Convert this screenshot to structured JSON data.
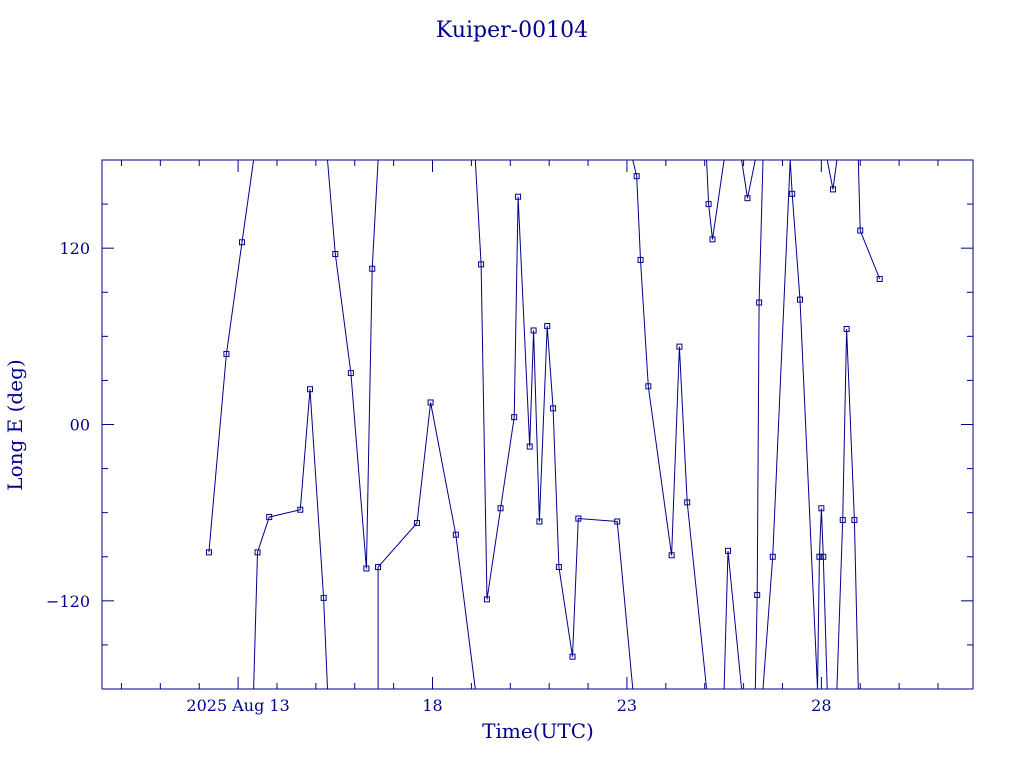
{
  "chart_data": {
    "type": "line",
    "title": "Kuiper-00104",
    "xlabel": "Time(UTC)",
    "ylabel": "Long E (deg)",
    "color": "#00008b",
    "x_axis": {
      "unit": "days (August 2025)",
      "range": [
        9.5,
        31.9
      ],
      "major_ticks": [
        {
          "value": 13.0,
          "label": "2025 Aug 13"
        },
        {
          "value": 18.0,
          "label": "18"
        },
        {
          "value": 23.0,
          "label": "23"
        },
        {
          "value": 28.0,
          "label": "28"
        }
      ],
      "minor_tick_step": 1
    },
    "y_axis": {
      "range": [
        -180,
        180
      ],
      "major_ticks": [
        {
          "value": -120,
          "label": "−120"
        },
        {
          "value": 0,
          "label": "00"
        },
        {
          "value": 120,
          "label": "120"
        }
      ],
      "minor_tick_step": 30
    },
    "wrap": true,
    "points": [
      [
        12.25,
        -87
      ],
      [
        12.7,
        48
      ],
      [
        13.1,
        124
      ],
      [
        13.4,
        180
      ],
      [
        13.4,
        -180
      ],
      [
        13.5,
        -87
      ],
      [
        13.8,
        -63
      ],
      [
        14.6,
        -58
      ],
      [
        14.85,
        24
      ],
      [
        15.2,
        -118
      ],
      [
        15.3,
        -180
      ],
      [
        15.3,
        180
      ],
      [
        15.5,
        116
      ],
      [
        15.9,
        35
      ],
      [
        16.3,
        -98
      ],
      [
        16.45,
        106
      ],
      [
        16.6,
        180
      ],
      [
        16.6,
        -180
      ],
      [
        16.6,
        -97
      ],
      [
        17.6,
        -67
      ],
      [
        17.95,
        15
      ],
      [
        18.6,
        -75
      ],
      [
        19.1,
        -180
      ],
      [
        19.1,
        180
      ],
      [
        19.25,
        109
      ],
      [
        19.4,
        -119
      ],
      [
        19.75,
        -57
      ],
      [
        20.1,
        5
      ],
      [
        20.2,
        155
      ],
      [
        20.5,
        -15
      ],
      [
        20.6,
        64
      ],
      [
        20.75,
        -66
      ],
      [
        20.95,
        67
      ],
      [
        21.1,
        11
      ],
      [
        21.25,
        -97
      ],
      [
        21.6,
        -158
      ],
      [
        21.75,
        -64
      ],
      [
        22.75,
        -66
      ],
      [
        23.15,
        -180
      ],
      [
        23.15,
        180
      ],
      [
        23.25,
        169
      ],
      [
        23.35,
        112
      ],
      [
        23.55,
        26
      ],
      [
        24.15,
        -89
      ],
      [
        24.35,
        53
      ],
      [
        24.55,
        -53
      ],
      [
        25.05,
        -180
      ],
      [
        25.05,
        180
      ],
      [
        25.1,
        150
      ],
      [
        25.2,
        126
      ],
      [
        25.5,
        180
      ],
      [
        25.5,
        -180
      ],
      [
        25.6,
        -86
      ],
      [
        25.95,
        -180
      ],
      [
        25.95,
        180
      ],
      [
        26.1,
        154
      ],
      [
        26.3,
        180
      ],
      [
        26.3,
        -180
      ],
      [
        26.35,
        -116
      ],
      [
        26.4,
        83
      ],
      [
        26.5,
        180
      ],
      [
        26.5,
        -180
      ],
      [
        26.75,
        -90
      ],
      [
        27.2,
        180
      ],
      [
        27.2,
        180
      ],
      [
        27.25,
        157
      ],
      [
        27.45,
        85
      ],
      [
        27.9,
        -180
      ],
      [
        27.9,
        -180
      ],
      [
        27.95,
        -90
      ],
      [
        28.0,
        -57
      ],
      [
        28.05,
        -90
      ],
      [
        28.15,
        -180
      ],
      [
        28.15,
        180
      ],
      [
        28.3,
        160
      ],
      [
        28.4,
        180
      ],
      [
        28.4,
        -180
      ],
      [
        28.55,
        -65
      ],
      [
        28.65,
        65
      ],
      [
        28.85,
        -65
      ],
      [
        28.95,
        -180
      ],
      [
        28.95,
        180
      ],
      [
        29.0,
        132
      ],
      [
        29.5,
        99
      ]
    ]
  }
}
